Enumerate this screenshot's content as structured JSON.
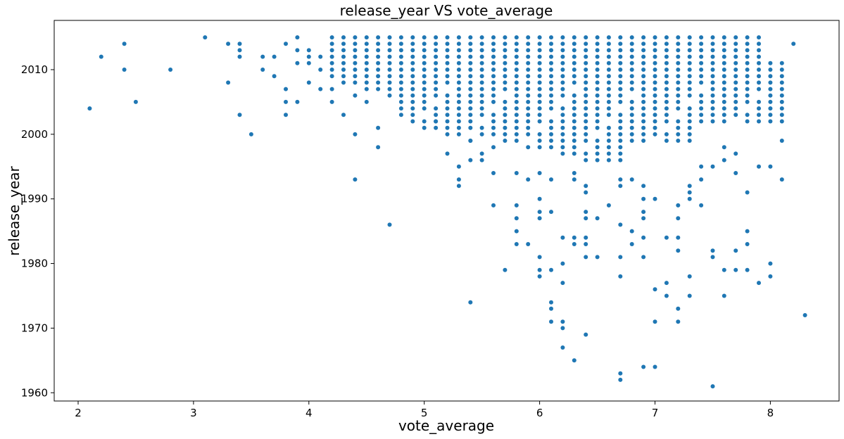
{
  "chart_data": {
    "type": "scatter",
    "title": "release_year VS vote_average",
    "xlabel": "vote_average",
    "ylabel": "release_year",
    "xlim": [
      1.8,
      8.6
    ],
    "ylim": [
      1958,
      2017
    ],
    "xticks": [
      "2",
      "3",
      "4",
      "5",
      "6",
      "7",
      "8"
    ],
    "yticks": [
      "1960",
      "1970",
      "1980",
      "1990",
      "2000",
      "2010"
    ],
    "grid": false,
    "legend": "none",
    "marker_color": "#1f77b4",
    "points": [
      [
        2.1,
        2004
      ],
      [
        2.2,
        2012
      ],
      [
        2.4,
        2014
      ],
      [
        2.4,
        2010
      ],
      [
        2.5,
        2005
      ],
      [
        2.8,
        2010
      ],
      [
        3.1,
        2015
      ],
      [
        3.3,
        2014
      ],
      [
        3.3,
        2008
      ],
      [
        3.4,
        2014
      ],
      [
        3.4,
        2013
      ],
      [
        3.4,
        2012
      ],
      [
        3.4,
        2003
      ],
      [
        3.5,
        2000
      ],
      [
        3.6,
        2012
      ],
      [
        3.6,
        2010
      ],
      [
        3.7,
        2012
      ],
      [
        3.7,
        2009
      ],
      [
        3.8,
        2014
      ],
      [
        3.8,
        2007
      ],
      [
        3.8,
        2005
      ],
      [
        3.8,
        2003
      ],
      [
        3.9,
        2015
      ],
      [
        3.9,
        2013
      ],
      [
        3.9,
        2011
      ],
      [
        3.9,
        2005
      ],
      [
        4.0,
        2013
      ],
      [
        4.0,
        2012
      ],
      [
        4.0,
        2011
      ],
      [
        4.0,
        2008
      ],
      [
        4.1,
        2012
      ],
      [
        4.1,
        2010
      ],
      [
        4.1,
        2007
      ],
      [
        4.2,
        2007
      ],
      [
        4.2,
        2005
      ],
      [
        4.3,
        2003
      ],
      [
        4.4,
        2006
      ],
      [
        4.4,
        2000
      ],
      [
        4.4,
        1993
      ],
      [
        4.5,
        2005
      ],
      [
        4.6,
        2001
      ],
      [
        4.6,
        1998
      ],
      [
        4.7,
        1986
      ],
      [
        5.0,
        2001
      ],
      [
        5.1,
        2002
      ],
      [
        5.2,
        2000
      ],
      [
        5.2,
        1997
      ],
      [
        5.3,
        1995
      ],
      [
        5.3,
        1993
      ],
      [
        5.3,
        1992
      ],
      [
        5.4,
        1999
      ],
      [
        5.4,
        1996
      ],
      [
        5.4,
        1974
      ],
      [
        5.5,
        1997
      ],
      [
        5.5,
        1996
      ],
      [
        5.6,
        1998
      ],
      [
        5.6,
        1994
      ],
      [
        5.6,
        1989
      ],
      [
        5.7,
        1979
      ],
      [
        5.8,
        1994
      ],
      [
        5.8,
        1989
      ],
      [
        5.8,
        1987
      ],
      [
        5.8,
        1985
      ],
      [
        5.8,
        1983
      ],
      [
        5.9,
        1993
      ],
      [
        5.9,
        1983
      ],
      [
        6.0,
        1994
      ],
      [
        6.0,
        1990
      ],
      [
        6.0,
        1988
      ],
      [
        6.0,
        1987
      ],
      [
        6.0,
        1981
      ],
      [
        6.0,
        1979
      ],
      [
        6.0,
        1978
      ],
      [
        6.1,
        1993
      ],
      [
        6.1,
        1988
      ],
      [
        6.1,
        1979
      ],
      [
        6.1,
        1974
      ],
      [
        6.1,
        1973
      ],
      [
        6.1,
        1971
      ],
      [
        6.2,
        1984
      ],
      [
        6.2,
        1980
      ],
      [
        6.2,
        1977
      ],
      [
        6.2,
        1971
      ],
      [
        6.2,
        1970
      ],
      [
        6.2,
        1967
      ],
      [
        6.3,
        1994
      ],
      [
        6.3,
        1993
      ],
      [
        6.3,
        1984
      ],
      [
        6.3,
        1983
      ],
      [
        6.3,
        1965
      ],
      [
        6.4,
        1992
      ],
      [
        6.4,
        1991
      ],
      [
        6.4,
        1988
      ],
      [
        6.4,
        1987
      ],
      [
        6.4,
        1984
      ],
      [
        6.4,
        1983
      ],
      [
        6.4,
        1981
      ],
      [
        6.4,
        1969
      ],
      [
        6.5,
        1987
      ],
      [
        6.5,
        1981
      ],
      [
        6.6,
        1989
      ],
      [
        6.7,
        1993
      ],
      [
        6.7,
        1992
      ],
      [
        6.7,
        1986
      ],
      [
        6.7,
        1981
      ],
      [
        6.7,
        1978
      ],
      [
        6.7,
        1963
      ],
      [
        6.7,
        1962
      ],
      [
        6.8,
        1993
      ],
      [
        6.8,
        1985
      ],
      [
        6.8,
        1983
      ],
      [
        6.9,
        1992
      ],
      [
        6.9,
        1990
      ],
      [
        6.9,
        1988
      ],
      [
        6.9,
        1987
      ],
      [
        6.9,
        1984
      ],
      [
        6.9,
        1981
      ],
      [
        6.9,
        1964
      ],
      [
        7.0,
        1990
      ],
      [
        7.0,
        1976
      ],
      [
        7.0,
        1971
      ],
      [
        7.0,
        1964
      ],
      [
        7.1,
        1984
      ],
      [
        7.1,
        1977
      ],
      [
        7.1,
        1975
      ],
      [
        7.2,
        1989
      ],
      [
        7.2,
        1987
      ],
      [
        7.2,
        1984
      ],
      [
        7.2,
        1982
      ],
      [
        7.2,
        1973
      ],
      [
        7.2,
        1971
      ],
      [
        7.3,
        1992
      ],
      [
        7.3,
        1991
      ],
      [
        7.3,
        1990
      ],
      [
        7.3,
        1978
      ],
      [
        7.3,
        1975
      ],
      [
        7.4,
        1995
      ],
      [
        7.4,
        1993
      ],
      [
        7.4,
        1989
      ],
      [
        7.5,
        1995
      ],
      [
        7.5,
        1982
      ],
      [
        7.5,
        1981
      ],
      [
        7.5,
        1961
      ],
      [
        7.6,
        1998
      ],
      [
        7.6,
        1996
      ],
      [
        7.6,
        1979
      ],
      [
        7.6,
        1975
      ],
      [
        7.7,
        1997
      ],
      [
        7.7,
        1994
      ],
      [
        7.7,
        1982
      ],
      [
        7.7,
        1979
      ],
      [
        7.8,
        1991
      ],
      [
        7.8,
        1985
      ],
      [
        7.8,
        1983
      ],
      [
        7.8,
        1979
      ],
      [
        7.9,
        1995
      ],
      [
        7.9,
        1977
      ],
      [
        8.0,
        1995
      ],
      [
        8.0,
        1980
      ],
      [
        8.0,
        1978
      ],
      [
        8.1,
        1999
      ],
      [
        8.1,
        1993
      ],
      [
        8.2,
        2014
      ],
      [
        8.3,
        1972
      ]
    ]
  }
}
